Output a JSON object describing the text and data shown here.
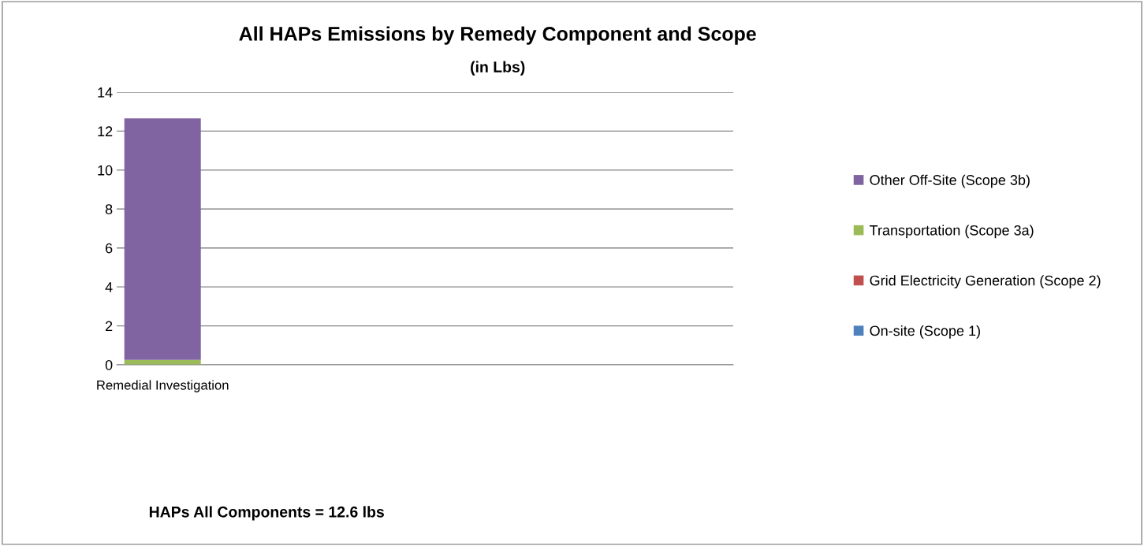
{
  "chart_data": {
    "type": "bar",
    "title": "All HAPs Emissions by Remedy Component and Scope",
    "subtitle": "(in Lbs)",
    "categories": [
      "Remedial Investigation"
    ],
    "stacked": true,
    "series": [
      {
        "name": "On-site (Scope 1)",
        "color": "#4f81bd",
        "values": [
          0
        ]
      },
      {
        "name": "Grid Electricity Generation (Scope 2)",
        "color": "#c0504d",
        "values": [
          0
        ]
      },
      {
        "name": "Transportation (Scope 3a)",
        "color": "#9bbb59",
        "values": [
          0.25
        ]
      },
      {
        "name": "Other Off-Site (Scope 3b)",
        "color": "#8064a2",
        "values": [
          12.4
        ]
      }
    ],
    "ylim": [
      0,
      14
    ],
    "yticks": [
      0,
      2,
      4,
      6,
      8,
      10,
      12,
      14
    ],
    "grid": "y",
    "legend": "right",
    "annotations": [
      "HAPs All Components = 12.6 lbs"
    ]
  }
}
